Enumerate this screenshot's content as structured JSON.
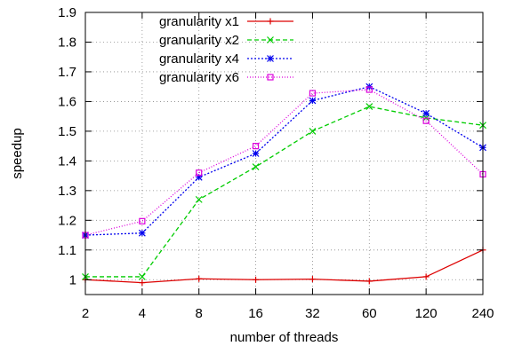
{
  "chart_data": {
    "type": "line",
    "title": "",
    "xlabel": "number of threads",
    "ylabel": "speedup",
    "categories": [
      "2",
      "4",
      "8",
      "16",
      "32",
      "60",
      "120",
      "240"
    ],
    "ylim": [
      0.95,
      1.9
    ],
    "yticks": [
      "1",
      "1.1",
      "1.2",
      "1.3",
      "1.4",
      "1.5",
      "1.6",
      "1.7",
      "1.8",
      "1.9"
    ],
    "grid": true,
    "legend_position": "top-left",
    "series": [
      {
        "name": "granularity x1",
        "color": "#dd0000",
        "dash": "solid",
        "marker": "plus",
        "values": [
          1.0,
          0.99,
          1.003,
          1.0,
          1.002,
          0.995,
          1.01,
          1.1
        ]
      },
      {
        "name": "granularity x2",
        "color": "#00cc00",
        "dash": "dashed",
        "marker": "cross",
        "values": [
          1.01,
          1.01,
          1.27,
          1.38,
          1.5,
          1.583,
          1.545,
          1.52
        ]
      },
      {
        "name": "granularity x4",
        "color": "#0000ee",
        "dash": "dotted",
        "marker": "star",
        "values": [
          1.15,
          1.157,
          1.345,
          1.425,
          1.603,
          1.65,
          1.56,
          1.445
        ]
      },
      {
        "name": "granularity x6",
        "color": "#dd00dd",
        "dash": "finedot",
        "marker": "square",
        "values": [
          1.15,
          1.197,
          1.36,
          1.45,
          1.628,
          1.64,
          1.535,
          1.355
        ]
      }
    ]
  }
}
